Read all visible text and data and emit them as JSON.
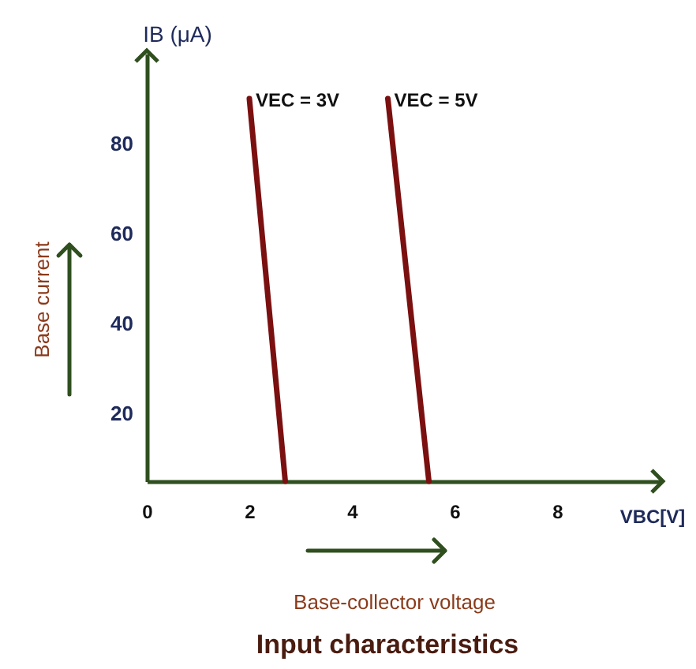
{
  "chart_data": {
    "type": "line",
    "title": "Input characteristics",
    "xlabel": "VBC[V]",
    "ylabel": "IB (μA)",
    "annotations": [
      "Base current",
      "Base-collector voltage"
    ],
    "series": [
      {
        "name": "VEC = 3V",
        "color": "#7b1010",
        "x": [
          2.0,
          2.7
        ],
        "values": [
          90,
          5
        ]
      },
      {
        "name": "VEC = 5V",
        "color": "#7b1010",
        "x": [
          4.7,
          5.5
        ],
        "values": [
          90,
          5
        ]
      }
    ],
    "xlim": [
      0,
      10
    ],
    "ylim": [
      5,
      100
    ],
    "xticks": [
      0,
      2,
      4,
      6,
      8
    ],
    "yticks": [
      20,
      40,
      60,
      80
    ],
    "grid": false,
    "line_style": "solid"
  }
}
